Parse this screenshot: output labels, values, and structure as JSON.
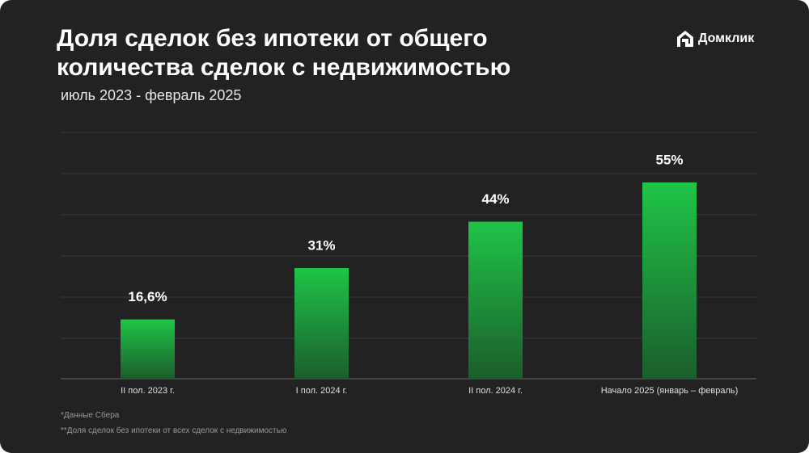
{
  "chart_data": {
    "type": "bar",
    "title": "Доля сделок без ипотеки от общего количества сделок с недвижимостью",
    "subtitle": "июль 2023 - февраль 2025",
    "brand": "Домклик",
    "categories": [
      "II пол. 2023 г.",
      "I пол. 2024 г.",
      "II пол. 2024 г.",
      "Начало 2025 (январь – февраль)"
    ],
    "values": [
      16.6,
      31,
      44,
      55
    ],
    "value_labels": [
      "16,6%",
      "31%",
      "44%",
      "55%"
    ],
    "color": "#1fc447",
    "ylim": [
      0,
      69
    ],
    "notes": [
      "*Данные Сбера",
      "**Доля сделок без ипотеки от всех сделок с недвижимостью"
    ]
  }
}
